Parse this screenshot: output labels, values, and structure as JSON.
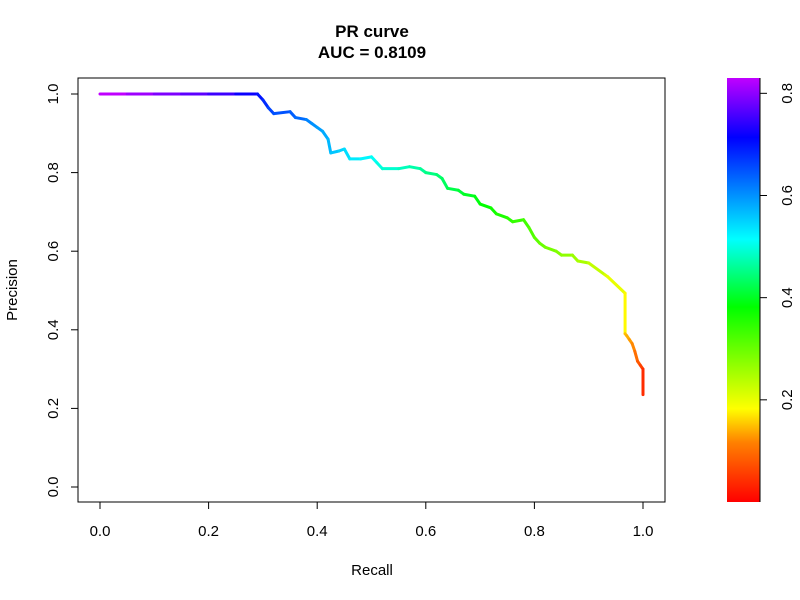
{
  "chart_data": {
    "type": "line",
    "title": "PR curve",
    "subtitle": "AUC = 0.8109",
    "xlabel": "Recall",
    "ylabel": "Precision",
    "xlim": [
      0,
      1
    ],
    "ylim": [
      0,
      1
    ],
    "x_ticks": [
      "0.0",
      "0.2",
      "0.4",
      "0.6",
      "0.8",
      "1.0"
    ],
    "y_ticks": [
      "0.0",
      "0.2",
      "0.4",
      "0.6",
      "0.8",
      "1.0"
    ],
    "grid": false,
    "colorbar": {
      "range": [
        0.0,
        0.83
      ],
      "ticks": [
        "0.2",
        "0.4",
        "0.6",
        "0.8"
      ],
      "colors": [
        "#ff0000",
        "#ff8000",
        "#ffff00",
        "#00ff00",
        "#00ffff",
        "#0000ff",
        "#c000ff"
      ]
    },
    "series": [
      {
        "points": [
          [
            0.0,
            1.0,
            0.83
          ],
          [
            0.05,
            1.0,
            0.81
          ],
          [
            0.1,
            1.0,
            0.79
          ],
          [
            0.15,
            1.0,
            0.77
          ],
          [
            0.2,
            1.0,
            0.75
          ],
          [
            0.25,
            1.0,
            0.72
          ],
          [
            0.29,
            1.0,
            0.7
          ],
          [
            0.3,
            0.985,
            0.68
          ],
          [
            0.31,
            0.965,
            0.66
          ],
          [
            0.32,
            0.95,
            0.65
          ],
          [
            0.35,
            0.955,
            0.64
          ],
          [
            0.36,
            0.94,
            0.63
          ],
          [
            0.38,
            0.935,
            0.61
          ],
          [
            0.39,
            0.925,
            0.6
          ],
          [
            0.4,
            0.915,
            0.59
          ],
          [
            0.41,
            0.905,
            0.58
          ],
          [
            0.42,
            0.885,
            0.57
          ],
          [
            0.425,
            0.85,
            0.56
          ],
          [
            0.44,
            0.855,
            0.55
          ],
          [
            0.45,
            0.86,
            0.54
          ],
          [
            0.46,
            0.835,
            0.53
          ],
          [
            0.48,
            0.835,
            0.52
          ],
          [
            0.5,
            0.84,
            0.51
          ],
          [
            0.51,
            0.825,
            0.5
          ],
          [
            0.52,
            0.81,
            0.49
          ],
          [
            0.55,
            0.81,
            0.48
          ],
          [
            0.57,
            0.815,
            0.47
          ],
          [
            0.59,
            0.81,
            0.46
          ],
          [
            0.6,
            0.8,
            0.45
          ],
          [
            0.62,
            0.795,
            0.44
          ],
          [
            0.63,
            0.785,
            0.43
          ],
          [
            0.64,
            0.76,
            0.42
          ],
          [
            0.66,
            0.755,
            0.41
          ],
          [
            0.67,
            0.745,
            0.4
          ],
          [
            0.69,
            0.74,
            0.39
          ],
          [
            0.7,
            0.72,
            0.38
          ],
          [
            0.72,
            0.71,
            0.37
          ],
          [
            0.73,
            0.695,
            0.36
          ],
          [
            0.75,
            0.685,
            0.35
          ],
          [
            0.76,
            0.675,
            0.34
          ],
          [
            0.78,
            0.68,
            0.33
          ],
          [
            0.79,
            0.66,
            0.32
          ],
          [
            0.8,
            0.635,
            0.31
          ],
          [
            0.81,
            0.62,
            0.3
          ],
          [
            0.82,
            0.61,
            0.29
          ],
          [
            0.84,
            0.6,
            0.28
          ],
          [
            0.85,
            0.59,
            0.27
          ],
          [
            0.87,
            0.59,
            0.26
          ],
          [
            0.88,
            0.575,
            0.25
          ],
          [
            0.9,
            0.57,
            0.23
          ],
          [
            0.93,
            0.54,
            0.21
          ],
          [
            0.935,
            0.535,
            0.2
          ],
          [
            0.967,
            0.493,
            0.18
          ],
          [
            0.967,
            0.39,
            0.15
          ],
          [
            0.97,
            0.385,
            0.14
          ],
          [
            0.975,
            0.375,
            0.13
          ],
          [
            0.98,
            0.365,
            0.12
          ],
          [
            0.985,
            0.345,
            0.1
          ],
          [
            0.99,
            0.32,
            0.08
          ],
          [
            0.995,
            0.31,
            0.06
          ],
          [
            1.0,
            0.3,
            0.04
          ],
          [
            1.0,
            0.235,
            0.02
          ]
        ]
      }
    ]
  }
}
